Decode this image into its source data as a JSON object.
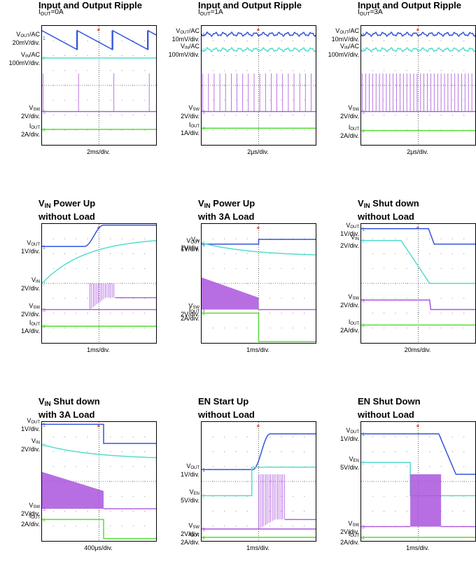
{
  "chart_data": [
    {
      "type": "line",
      "title": {
        "main": "Input and Output Ripple",
        "sub": "",
        "tail": "",
        "line2": ""
      },
      "condition": {
        "pre": "I",
        "sub": "OUT",
        "post": "=0A"
      },
      "timebase": "2ms/div.",
      "channels": [
        {
          "name": "VOUT/AC",
          "label": {
            "pre": "V",
            "sub": "OUT",
            "post": "/AC"
          },
          "scale": "20mV/div.",
          "color": "#3355dd",
          "level": 0.1,
          "shape": "sawtooth",
          "period": 3.1
        },
        {
          "name": "VIN/AC",
          "label": {
            "pre": "V",
            "sub": "IN",
            "post": "/AC"
          },
          "scale": "100mV/div.",
          "color": "#55ddcc",
          "level": 0.27,
          "shape": "flat"
        },
        {
          "name": "VSW",
          "label": {
            "pre": "V",
            "sub": "SW",
            "post": ""
          },
          "scale": "2V/div.",
          "color": "#aa55dd",
          "level": 0.72,
          "shape": "sparse",
          "period": 3.1,
          "high": 0.4
        },
        {
          "name": "IOUT",
          "label": {
            "pre": "I",
            "sub": "OUT",
            "post": ""
          },
          "scale": "2A/div.",
          "color": "#55dd33",
          "level": 0.87,
          "shape": "flat"
        }
      ]
    },
    {
      "type": "line",
      "title": {
        "main": "Input and Output Ripple",
        "sub": "",
        "tail": "",
        "line2": ""
      },
      "condition": {
        "pre": "I",
        "sub": "OUT",
        "post": "=1A"
      },
      "timebase": "2μs/div.",
      "channels": [
        {
          "name": "VOUT/AC",
          "label": {
            "pre": "V",
            "sub": "OUT",
            "post": "/AC"
          },
          "scale": "10mV/div.",
          "color": "#3355dd",
          "level": 0.07,
          "shape": "ripple"
        },
        {
          "name": "VIN/AC",
          "label": {
            "pre": "V",
            "sub": "IN",
            "post": "/AC"
          },
          "scale": "100mV/div.",
          "color": "#55ddcc",
          "level": 0.2,
          "shape": "ripple"
        },
        {
          "name": "VSW",
          "label": {
            "pre": "V",
            "sub": "SW",
            "post": ""
          },
          "scale": "2V/div.",
          "color": "#aa55dd",
          "level": 0.72,
          "shape": "pulses",
          "period": 0.5,
          "high": 0.4
        },
        {
          "name": "IOUT",
          "label": {
            "pre": "I",
            "sub": "OUT",
            "post": ""
          },
          "scale": "1A/div.",
          "color": "#55dd33",
          "level": 0.86,
          "shape": "flat"
        }
      ]
    },
    {
      "type": "line",
      "title": {
        "main": "Input and Output Ripple",
        "sub": "",
        "tail": "",
        "line2": ""
      },
      "condition": {
        "pre": "I",
        "sub": "OUT",
        "post": "=3A"
      },
      "timebase": "2μs/div.",
      "channels": [
        {
          "name": "VOUT/AC",
          "label": {
            "pre": "V",
            "sub": "OUT",
            "post": "/AC"
          },
          "scale": "10mV/div.",
          "color": "#3355dd",
          "level": 0.07,
          "shape": "ripple"
        },
        {
          "name": "VIN/AC",
          "label": {
            "pre": "V",
            "sub": "IN",
            "post": "/AC"
          },
          "scale": "100mV/div.",
          "color": "#55ddcc",
          "level": 0.2,
          "shape": "ripple"
        },
        {
          "name": "VSW",
          "label": {
            "pre": "V",
            "sub": "SW",
            "post": ""
          },
          "scale": "2V/div.",
          "color": "#aa55dd",
          "level": 0.72,
          "shape": "pulses",
          "period": 0.3,
          "high": 0.4
        },
        {
          "name": "IOUT",
          "label": {
            "pre": "I",
            "sub": "OUT",
            "post": ""
          },
          "scale": "2A/div.",
          "color": "#55dd33",
          "level": 0.88,
          "shape": "flat"
        }
      ]
    },
    {
      "type": "line",
      "title": {
        "main": "V",
        "sub": "IN",
        "tail": " Power Up",
        "line2": "without Load"
      },
      "condition": null,
      "timebase": "1ms/div.",
      "channels": [
        {
          "name": "VOUT",
          "label": {
            "pre": "V",
            "sub": "OUT",
            "post": ""
          },
          "scale": "1V/div.",
          "color": "#3355dd",
          "level": 0.19,
          "shape": "rise",
          "t0": 3.7,
          "t1": 5.4,
          "to": 0.01
        },
        {
          "name": "VIN",
          "label": {
            "pre": "V",
            "sub": "IN",
            "post": ""
          },
          "scale": "2V/div.",
          "color": "#55ddcc",
          "level": 0.5,
          "shape": "curveup",
          "to": 0.14
        },
        {
          "name": "VSW",
          "label": {
            "pre": "V",
            "sub": "SW",
            "post": ""
          },
          "scale": "2V/div.",
          "color": "#aa55dd",
          "level": 0.72,
          "shape": "burst",
          "t0": 4.2,
          "t1": 6.4,
          "to": 0.62,
          "high": 0.5
        },
        {
          "name": "IOUT",
          "label": {
            "pre": "I",
            "sub": "OUT",
            "post": ""
          },
          "scale": "1A/div.",
          "color": "#55dd33",
          "level": 0.86,
          "shape": "flat"
        }
      ]
    },
    {
      "type": "line",
      "title": {
        "main": "V",
        "sub": "IN",
        "tail": " Power Up",
        "line2": "with 3A Load"
      },
      "condition": null,
      "timebase": "1ms/div.",
      "channels": [
        {
          "name": "VOUT",
          "label": {
            "pre": "V",
            "sub": "OUT",
            "post": ""
          },
          "scale": "1V/div.",
          "color": "#3355dd",
          "level": 0.17,
          "shape": "stepdown",
          "t0": 5.0,
          "to": 0.13
        },
        {
          "name": "VIN",
          "label": {
            "pre": "V",
            "sub": "IN",
            "post": ""
          },
          "scale": "2V/div.",
          "color": "#55ddcc",
          "level": 0.16,
          "shape": "decay",
          "to": 0.26
        },
        {
          "name": "VSW",
          "label": {
            "pre": "V",
            "sub": "SW",
            "post": ""
          },
          "scale": "2V/div.",
          "color": "#aa55dd",
          "level": 0.72,
          "shape": "blockdecay",
          "t0": 0.0,
          "t1": 5.0,
          "top0": 0.45,
          "top1": 0.62
        },
        {
          "name": "IOUT",
          "label": {
            "pre": "I",
            "sub": "OUT",
            "post": ""
          },
          "scale": "2A/div.",
          "color": "#55dd33",
          "level": 0.75,
          "shape": "stepdown",
          "t0": 5.0,
          "to": 0.99
        }
      ]
    },
    {
      "type": "line",
      "title": {
        "main": "V",
        "sub": "IN",
        "tail": " Shut down",
        "line2": "without Load"
      },
      "condition": null,
      "timebase": "20ms/div.",
      "channels": [
        {
          "name": "VOUT",
          "label": {
            "pre": "V",
            "sub": "OUT",
            "post": ""
          },
          "scale": "1V/div.",
          "color": "#3355dd",
          "level": 0.04,
          "shape": "fall",
          "t0": 5.9,
          "t1": 6.4,
          "to": 0.17
        },
        {
          "name": "VIN",
          "label": {
            "pre": "V",
            "sub": "IN",
            "post": ""
          },
          "scale": "2V/div.",
          "color": "#55ddcc",
          "level": 0.14,
          "shape": "fall",
          "t0": 3.5,
          "t1": 6.0,
          "to": 0.5
        },
        {
          "name": "VSW",
          "label": {
            "pre": "V",
            "sub": "SW",
            "post": ""
          },
          "scale": "2V/div.",
          "color": "#aa55dd",
          "level": 0.64,
          "shape": "fall",
          "t0": 6.0,
          "t1": 6.1,
          "to": 0.72
        },
        {
          "name": "IOUT",
          "label": {
            "pre": "I",
            "sub": "OUT",
            "post": ""
          },
          "scale": "2A/div.",
          "color": "#55dd33",
          "level": 0.85,
          "shape": "flat"
        }
      ]
    },
    {
      "type": "line",
      "title": {
        "main": "V",
        "sub": "IN",
        "tail": " Shut down",
        "line2": "with 3A Load"
      },
      "condition": null,
      "timebase": "400μs/div.",
      "channels": [
        {
          "name": "VOUT",
          "label": {
            "pre": "V",
            "sub": "OUT",
            "post": ""
          },
          "scale": "1V/div.",
          "color": "#3355dd",
          "level": 0.02,
          "shape": "stepdown",
          "t0": 5.4,
          "to": 0.18
        },
        {
          "name": "VIN",
          "label": {
            "pre": "V",
            "sub": "IN",
            "post": ""
          },
          "scale": "2V/div.",
          "color": "#55ddcc",
          "level": 0.19,
          "shape": "decay",
          "to": 0.3
        },
        {
          "name": "VSW",
          "label": {
            "pre": "V",
            "sub": "SW",
            "post": ""
          },
          "scale": "2V/div.",
          "color": "#aa55dd",
          "level": 0.73,
          "shape": "blockdecay",
          "t0": 0.0,
          "t1": 5.4,
          "top0": 0.42,
          "top1": 0.58
        },
        {
          "name": "IOUT",
          "label": {
            "pre": "I",
            "sub": "OUT",
            "post": ""
          },
          "scale": "2A/div.",
          "color": "#55dd33",
          "level": 0.82,
          "shape": "stepdown",
          "t0": 5.4,
          "to": 0.98
        }
      ]
    },
    {
      "type": "line",
      "title": {
        "main": "EN Start Up",
        "sub": "",
        "tail": "",
        "line2": "without Load"
      },
      "condition": null,
      "timebase": "1ms/div.",
      "channels": [
        {
          "name": "VOUT",
          "label": {
            "pre": "V",
            "sub": "OUT",
            "post": ""
          },
          "scale": "1V/div.",
          "color": "#3355dd",
          "level": 0.4,
          "shape": "rise",
          "t0": 4.5,
          "t1": 6.0,
          "to": 0.1
        },
        {
          "name": "VEN",
          "label": {
            "pre": "V",
            "sub": "EN",
            "post": ""
          },
          "scale": "5V/div.",
          "color": "#55ddcc",
          "level": 0.62,
          "shape": "stepup",
          "t0": 4.4,
          "to": 0.38
        },
        {
          "name": "VSW",
          "label": {
            "pre": "V",
            "sub": "SW",
            "post": ""
          },
          "scale": "2V/div.",
          "color": "#aa55dd",
          "level": 0.9,
          "shape": "burst",
          "t0": 5.0,
          "t1": 7.3,
          "to": 0.82,
          "high": 0.44
        },
        {
          "name": "IOUT",
          "label": {
            "pre": "I",
            "sub": "OUT",
            "post": ""
          },
          "scale": "2A/div.",
          "color": "#55dd33",
          "level": 0.97,
          "shape": "flat"
        }
      ]
    },
    {
      "type": "line",
      "title": {
        "main": "EN Shut Down",
        "sub": "",
        "tail": "",
        "line2": "without Load"
      },
      "condition": null,
      "timebase": "1ms/div.",
      "channels": [
        {
          "name": "VOUT",
          "label": {
            "pre": "V",
            "sub": "OUT",
            "post": ""
          },
          "scale": "1V/div.",
          "color": "#3355dd",
          "level": 0.1,
          "shape": "fall",
          "t0": 6.8,
          "t1": 8.3,
          "to": 0.44
        },
        {
          "name": "VEN",
          "label": {
            "pre": "V",
            "sub": "EN",
            "post": ""
          },
          "scale": "5V/div.",
          "color": "#55ddcc",
          "level": 0.34,
          "shape": "stepdown",
          "t0": 4.3,
          "to": 0.62
        },
        {
          "name": "VSW",
          "label": {
            "pre": "V",
            "sub": "SW",
            "post": ""
          },
          "scale": "2V/div.",
          "color": "#aa55dd",
          "level": 0.88,
          "shape": "block",
          "t0": 4.3,
          "t1": 7.0,
          "top": 0.44
        },
        {
          "name": "IOUT",
          "label": {
            "pre": "I",
            "sub": "OUT",
            "post": ""
          },
          "scale": "2A/div.",
          "color": "#55dd33",
          "level": 0.97,
          "shape": "flat"
        }
      ]
    }
  ]
}
